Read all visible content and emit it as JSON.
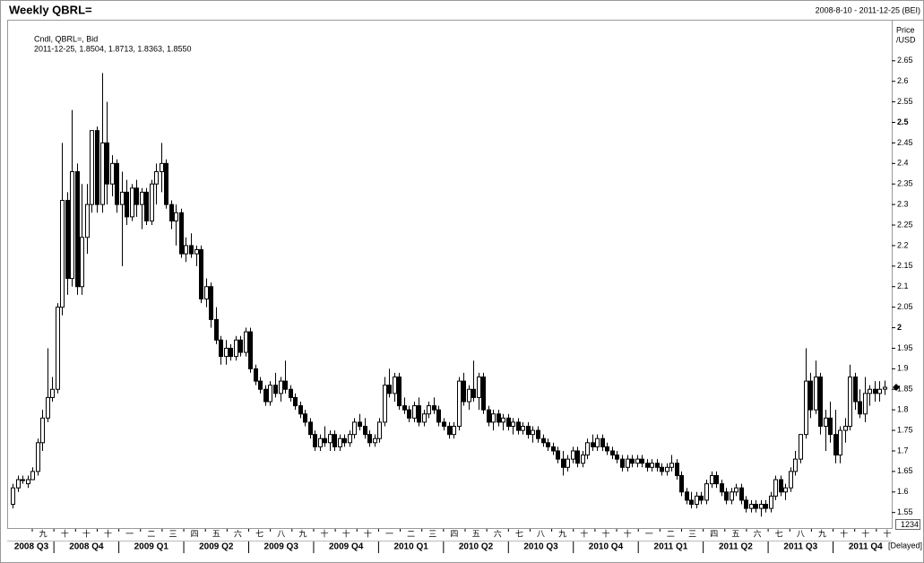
{
  "chart_data": {
    "type": "candlestick",
    "title": "Weekly QBRL=",
    "range_label": "2008-8-10 - 2011-12-25 (BEI)",
    "legend": [
      "Cndl, QBRL=, Bid",
      "2011-12-25, 1.8504, 1.8713, 1.8363, 1.8550"
    ],
    "y_axis_label": [
      "Price",
      "/USD"
    ],
    "corner_label": "1234",
    "status_label": "[Delayed]",
    "ylim": [
      1.51,
      2.75
    ],
    "yticks": [
      1.55,
      1.6,
      1.65,
      1.7,
      1.75,
      1.8,
      1.85,
      1.9,
      1.95,
      2,
      2.05,
      2.1,
      2.15,
      2.2,
      2.25,
      2.3,
      2.35,
      2.4,
      2.45,
      2.5,
      2.55,
      2.6,
      2.65
    ],
    "months": [
      "九",
      "十",
      "十",
      "十",
      "一",
      "二",
      "三",
      "四",
      "五",
      "六",
      "七",
      "八",
      "九",
      "十",
      "十",
      "十",
      "一",
      "二",
      "三",
      "四",
      "五",
      "六",
      "七",
      "八",
      "九",
      "十",
      "十",
      "十",
      "一",
      "二",
      "三",
      "四",
      "五",
      "六",
      "七",
      "八",
      "九",
      "十",
      "十",
      "十"
    ],
    "quarters": [
      "2008 Q3",
      "2008 Q4",
      "2009 Q1",
      "2009 Q2",
      "2009 Q3",
      "2009 Q4",
      "2010 Q1",
      "2010 Q2",
      "2010 Q3",
      "2010 Q4",
      "2011 Q1",
      "2011 Q2",
      "2011 Q3",
      "2011 Q4"
    ],
    "up_color": "#ffffff",
    "down_color": "#000000",
    "candles": [
      [
        1.57,
        1.62,
        1.56,
        1.61
      ],
      [
        1.61,
        1.64,
        1.6,
        1.63
      ],
      [
        1.63,
        1.64,
        1.62,
        1.63
      ],
      [
        1.62,
        1.64,
        1.61,
        1.63
      ],
      [
        1.63,
        1.66,
        1.63,
        1.65
      ],
      [
        1.65,
        1.73,
        1.64,
        1.72
      ],
      [
        1.72,
        1.8,
        1.7,
        1.78
      ],
      [
        1.78,
        1.95,
        1.77,
        1.83
      ],
      [
        1.83,
        1.88,
        1.82,
        1.85
      ],
      [
        1.85,
        2.06,
        1.84,
        2.05
      ],
      [
        2.05,
        2.45,
        2.03,
        2.31
      ],
      [
        2.31,
        2.33,
        2.08,
        2.12
      ],
      [
        2.12,
        2.53,
        2.1,
        2.38
      ],
      [
        2.38,
        2.4,
        2.08,
        2.1
      ],
      [
        2.1,
        2.35,
        2.08,
        2.22
      ],
      [
        2.22,
        2.35,
        2.18,
        2.3
      ],
      [
        2.3,
        2.48,
        2.28,
        2.48
      ],
      [
        2.48,
        2.49,
        2.28,
        2.3
      ],
      [
        2.3,
        2.62,
        2.28,
        2.45
      ],
      [
        2.45,
        2.55,
        2.3,
        2.35
      ],
      [
        2.35,
        2.42,
        2.32,
        2.4
      ],
      [
        2.4,
        2.41,
        2.28,
        2.3
      ],
      [
        2.3,
        2.38,
        2.15,
        2.33
      ],
      [
        2.33,
        2.36,
        2.25,
        2.27
      ],
      [
        2.27,
        2.35,
        2.26,
        2.34
      ],
      [
        2.34,
        2.36,
        2.27,
        2.3
      ],
      [
        2.3,
        2.34,
        2.24,
        2.33
      ],
      [
        2.33,
        2.34,
        2.25,
        2.26
      ],
      [
        2.26,
        2.36,
        2.25,
        2.35
      ],
      [
        2.35,
        2.4,
        2.3,
        2.38
      ],
      [
        2.38,
        2.45,
        2.33,
        2.4
      ],
      [
        2.4,
        2.41,
        2.29,
        2.3
      ],
      [
        2.3,
        2.31,
        2.24,
        2.26
      ],
      [
        2.26,
        2.3,
        2.2,
        2.28
      ],
      [
        2.28,
        2.29,
        2.17,
        2.18
      ],
      [
        2.18,
        2.22,
        2.16,
        2.2
      ],
      [
        2.2,
        2.23,
        2.17,
        2.18
      ],
      [
        2.18,
        2.2,
        2.15,
        2.19
      ],
      [
        2.19,
        2.2,
        2.06,
        2.07
      ],
      [
        2.07,
        2.12,
        2.05,
        2.1
      ],
      [
        2.1,
        2.11,
        2.0,
        2.02
      ],
      [
        2.02,
        2.05,
        1.96,
        1.97
      ],
      [
        1.97,
        1.98,
        1.91,
        1.93
      ],
      [
        1.93,
        1.97,
        1.91,
        1.95
      ],
      [
        1.95,
        1.96,
        1.92,
        1.93
      ],
      [
        1.93,
        1.98,
        1.92,
        1.97
      ],
      [
        1.97,
        1.98,
        1.93,
        1.94
      ],
      [
        1.94,
        2.0,
        1.93,
        1.99
      ],
      [
        1.99,
        2.0,
        1.89,
        1.9
      ],
      [
        1.9,
        1.91,
        1.86,
        1.87
      ],
      [
        1.87,
        1.88,
        1.84,
        1.85
      ],
      [
        1.85,
        1.86,
        1.81,
        1.82
      ],
      [
        1.82,
        1.87,
        1.81,
        1.86
      ],
      [
        1.86,
        1.89,
        1.83,
        1.84
      ],
      [
        1.84,
        1.88,
        1.82,
        1.87
      ],
      [
        1.87,
        1.92,
        1.84,
        1.85
      ],
      [
        1.85,
        1.86,
        1.82,
        1.83
      ],
      [
        1.83,
        1.84,
        1.8,
        1.81
      ],
      [
        1.81,
        1.82,
        1.78,
        1.79
      ],
      [
        1.79,
        1.8,
        1.76,
        1.77
      ],
      [
        1.77,
        1.78,
        1.73,
        1.74
      ],
      [
        1.74,
        1.75,
        1.7,
        1.71
      ],
      [
        1.71,
        1.74,
        1.7,
        1.73
      ],
      [
        1.73,
        1.76,
        1.71,
        1.72
      ],
      [
        1.72,
        1.75,
        1.7,
        1.74
      ],
      [
        1.74,
        1.75,
        1.7,
        1.71
      ],
      [
        1.71,
        1.74,
        1.7,
        1.73
      ],
      [
        1.73,
        1.74,
        1.71,
        1.72
      ],
      [
        1.72,
        1.75,
        1.71,
        1.74
      ],
      [
        1.74,
        1.78,
        1.73,
        1.77
      ],
      [
        1.77,
        1.79,
        1.75,
        1.76
      ],
      [
        1.76,
        1.78,
        1.73,
        1.74
      ],
      [
        1.74,
        1.75,
        1.71,
        1.72
      ],
      [
        1.72,
        1.74,
        1.71,
        1.73
      ],
      [
        1.73,
        1.78,
        1.72,
        1.77
      ],
      [
        1.77,
        1.88,
        1.76,
        1.86
      ],
      [
        1.86,
        1.9,
        1.83,
        1.84
      ],
      [
        1.84,
        1.89,
        1.82,
        1.88
      ],
      [
        1.88,
        1.89,
        1.8,
        1.81
      ],
      [
        1.81,
        1.83,
        1.79,
        1.8
      ],
      [
        1.8,
        1.81,
        1.77,
        1.78
      ],
      [
        1.78,
        1.82,
        1.77,
        1.81
      ],
      [
        1.81,
        1.83,
        1.76,
        1.77
      ],
      [
        1.77,
        1.8,
        1.76,
        1.79
      ],
      [
        1.79,
        1.82,
        1.78,
        1.81
      ],
      [
        1.81,
        1.83,
        1.79,
        1.8
      ],
      [
        1.8,
        1.81,
        1.76,
        1.77
      ],
      [
        1.77,
        1.78,
        1.75,
        1.76
      ],
      [
        1.76,
        1.77,
        1.73,
        1.74
      ],
      [
        1.74,
        1.77,
        1.73,
        1.76
      ],
      [
        1.76,
        1.88,
        1.75,
        1.87
      ],
      [
        1.87,
        1.89,
        1.81,
        1.82
      ],
      [
        1.82,
        1.86,
        1.8,
        1.85
      ],
      [
        1.85,
        1.92,
        1.82,
        1.83
      ],
      [
        1.83,
        1.89,
        1.8,
        1.88
      ],
      [
        1.88,
        1.89,
        1.79,
        1.8
      ],
      [
        1.8,
        1.81,
        1.76,
        1.77
      ],
      [
        1.77,
        1.8,
        1.75,
        1.79
      ],
      [
        1.79,
        1.8,
        1.76,
        1.77
      ],
      [
        1.77,
        1.79,
        1.75,
        1.78
      ],
      [
        1.78,
        1.79,
        1.75,
        1.76
      ],
      [
        1.76,
        1.78,
        1.74,
        1.77
      ],
      [
        1.77,
        1.78,
        1.74,
        1.75
      ],
      [
        1.75,
        1.77,
        1.74,
        1.76
      ],
      [
        1.76,
        1.77,
        1.73,
        1.74
      ],
      [
        1.74,
        1.76,
        1.72,
        1.75
      ],
      [
        1.75,
        1.76,
        1.72,
        1.73
      ],
      [
        1.73,
        1.74,
        1.71,
        1.72
      ],
      [
        1.72,
        1.73,
        1.7,
        1.71
      ],
      [
        1.71,
        1.72,
        1.69,
        1.7
      ],
      [
        1.7,
        1.71,
        1.67,
        1.68
      ],
      [
        1.68,
        1.7,
        1.64,
        1.66
      ],
      [
        1.66,
        1.69,
        1.65,
        1.68
      ],
      [
        1.68,
        1.71,
        1.67,
        1.7
      ],
      [
        1.7,
        1.71,
        1.66,
        1.67
      ],
      [
        1.67,
        1.7,
        1.66,
        1.69
      ],
      [
        1.69,
        1.73,
        1.68,
        1.72
      ],
      [
        1.72,
        1.74,
        1.7,
        1.71
      ],
      [
        1.71,
        1.74,
        1.7,
        1.73
      ],
      [
        1.73,
        1.74,
        1.7,
        1.71
      ],
      [
        1.71,
        1.72,
        1.69,
        1.7
      ],
      [
        1.7,
        1.71,
        1.68,
        1.69
      ],
      [
        1.69,
        1.7,
        1.67,
        1.68
      ],
      [
        1.68,
        1.69,
        1.65,
        1.66
      ],
      [
        1.66,
        1.69,
        1.65,
        1.68
      ],
      [
        1.68,
        1.69,
        1.66,
        1.67
      ],
      [
        1.67,
        1.69,
        1.66,
        1.68
      ],
      [
        1.68,
        1.69,
        1.66,
        1.67
      ],
      [
        1.67,
        1.68,
        1.65,
        1.66
      ],
      [
        1.66,
        1.68,
        1.65,
        1.67
      ],
      [
        1.67,
        1.68,
        1.65,
        1.66
      ],
      [
        1.66,
        1.67,
        1.64,
        1.65
      ],
      [
        1.65,
        1.67,
        1.64,
        1.66
      ],
      [
        1.66,
        1.69,
        1.65,
        1.67
      ],
      [
        1.67,
        1.68,
        1.63,
        1.64
      ],
      [
        1.64,
        1.65,
        1.59,
        1.6
      ],
      [
        1.6,
        1.61,
        1.57,
        1.58
      ],
      [
        1.58,
        1.6,
        1.56,
        1.57
      ],
      [
        1.57,
        1.6,
        1.56,
        1.59
      ],
      [
        1.59,
        1.6,
        1.57,
        1.58
      ],
      [
        1.58,
        1.63,
        1.57,
        1.62
      ],
      [
        1.62,
        1.65,
        1.61,
        1.64
      ],
      [
        1.64,
        1.65,
        1.61,
        1.62
      ],
      [
        1.62,
        1.63,
        1.59,
        1.6
      ],
      [
        1.6,
        1.61,
        1.57,
        1.58
      ],
      [
        1.58,
        1.61,
        1.57,
        1.6
      ],
      [
        1.6,
        1.62,
        1.59,
        1.61
      ],
      [
        1.61,
        1.62,
        1.57,
        1.58
      ],
      [
        1.58,
        1.59,
        1.55,
        1.56
      ],
      [
        1.56,
        1.58,
        1.55,
        1.57
      ],
      [
        1.57,
        1.58,
        1.55,
        1.56
      ],
      [
        1.56,
        1.58,
        1.54,
        1.57
      ],
      [
        1.57,
        1.58,
        1.55,
        1.56
      ],
      [
        1.56,
        1.6,
        1.55,
        1.59
      ],
      [
        1.59,
        1.64,
        1.58,
        1.63
      ],
      [
        1.63,
        1.64,
        1.59,
        1.6
      ],
      [
        1.6,
        1.62,
        1.58,
        1.61
      ],
      [
        1.61,
        1.66,
        1.6,
        1.65
      ],
      [
        1.65,
        1.7,
        1.64,
        1.68
      ],
      [
        1.68,
        1.74,
        1.67,
        1.74
      ],
      [
        1.74,
        1.95,
        1.73,
        1.87
      ],
      [
        1.87,
        1.89,
        1.78,
        1.8
      ],
      [
        1.8,
        1.92,
        1.79,
        1.88
      ],
      [
        1.88,
        1.89,
        1.74,
        1.76
      ],
      [
        1.76,
        1.8,
        1.7,
        1.78
      ],
      [
        1.78,
        1.82,
        1.72,
        1.74
      ],
      [
        1.74,
        1.8,
        1.67,
        1.69
      ],
      [
        1.69,
        1.76,
        1.67,
        1.75
      ],
      [
        1.75,
        1.78,
        1.72,
        1.76
      ],
      [
        1.76,
        1.91,
        1.75,
        1.88
      ],
      [
        1.88,
        1.89,
        1.8,
        1.82
      ],
      [
        1.82,
        1.85,
        1.78,
        1.79
      ],
      [
        1.79,
        1.88,
        1.77,
        1.84
      ],
      [
        1.84,
        1.86,
        1.81,
        1.85
      ],
      [
        1.85,
        1.87,
        1.82,
        1.84
      ],
      [
        1.84,
        1.87,
        1.82,
        1.85
      ],
      [
        1.8504,
        1.8713,
        1.8363,
        1.855
      ]
    ]
  }
}
